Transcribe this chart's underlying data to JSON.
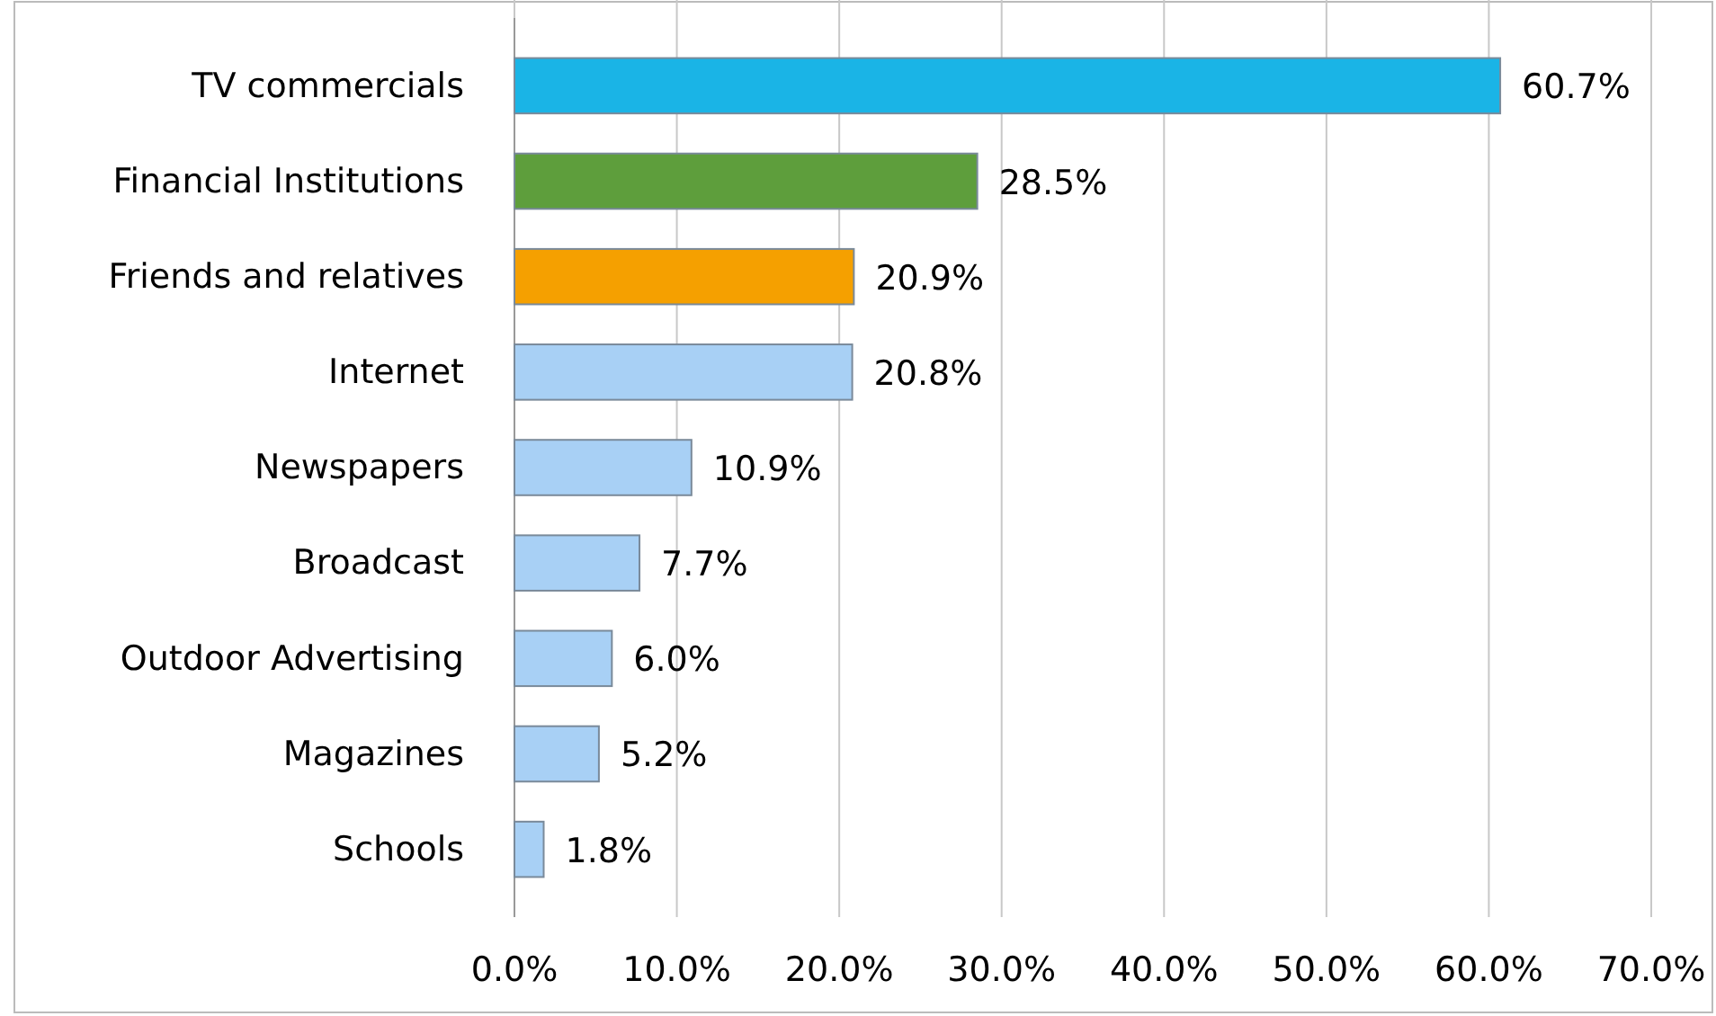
{
  "chart_data": {
    "type": "bar",
    "orientation": "horizontal",
    "categories": [
      "TV commercials",
      "Financial Institutions",
      "Friends and relatives",
      "Internet",
      "Newspapers",
      "Broadcast",
      "Outdoor Advertising",
      "Magazines",
      "Schools"
    ],
    "values": [
      60.7,
      28.5,
      20.9,
      20.8,
      10.9,
      7.7,
      6.0,
      5.2,
      1.8
    ],
    "colors": [
      "#1ab4e6",
      "#5e9e3c",
      "#f5a000",
      "#a8d0f5",
      "#a8d0f5",
      "#a8d0f5",
      "#a8d0f5",
      "#a8d0f5",
      "#a8d0f5"
    ],
    "value_labels": [
      "60.7%",
      "28.5%",
      "20.9%",
      "20.8%",
      "10.9%",
      "7.7%",
      "6.0%",
      "5.2%",
      "1.8%"
    ],
    "xlim": [
      0,
      70
    ],
    "xticks": [
      {
        "value": 0,
        "label": "0.0%"
      },
      {
        "value": 10,
        "label": "10.0%"
      },
      {
        "value": 20,
        "label": "20.0%"
      },
      {
        "value": 30,
        "label": "30.0%"
      },
      {
        "value": 40,
        "label": "40.0%"
      },
      {
        "value": 50,
        "label": "50.0%"
      },
      {
        "value": 60,
        "label": "60.0%"
      },
      {
        "value": 70,
        "label": "70.0%"
      }
    ],
    "grid": "x"
  }
}
